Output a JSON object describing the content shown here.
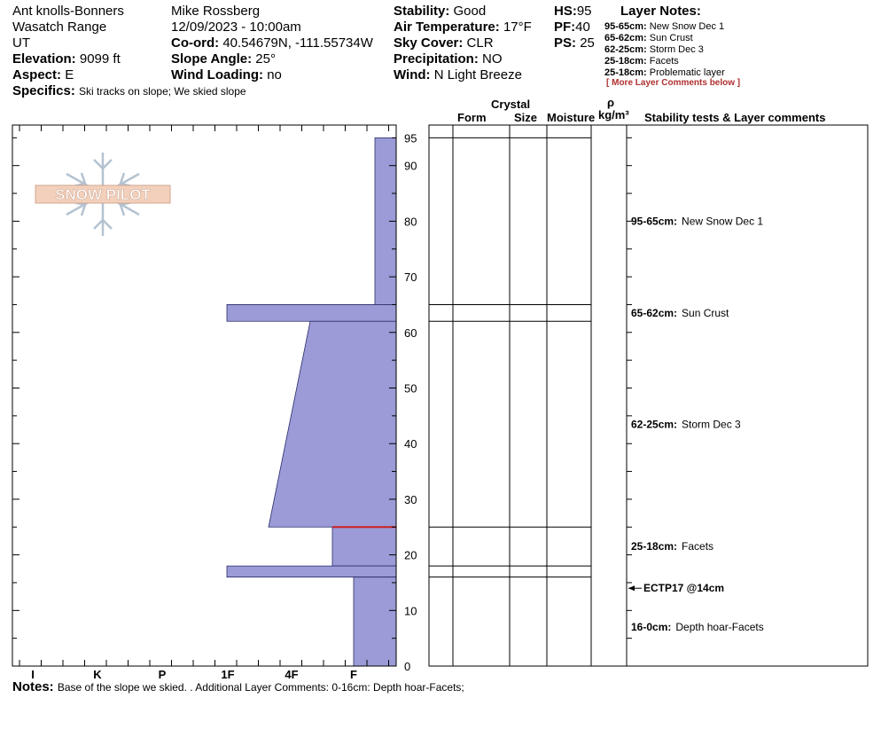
{
  "header": {
    "location": "Ant knolls-Bonners",
    "range": "Wasatch Range",
    "state": "UT",
    "elevation_label": "Elevation:",
    "elevation_value": "9099 ft",
    "aspect_label": "Aspect:",
    "aspect_value": "E",
    "specifics_label": "Specifics:",
    "specifics_value": "Ski tracks on slope; We skied slope",
    "observer": "Mike Rossberg",
    "datetime": "12/09/2023 - 10:00am",
    "coord_label": "Co-ord:",
    "coord_value": "40.54679N, -111.55734W",
    "slope_label": "Slope Angle:",
    "slope_value": "25°",
    "wind_loading_label": "Wind Loading:",
    "wind_loading_value": "no",
    "stability_label": "Stability:",
    "stability_value": "Good",
    "air_temp_label": "Air Temperature:",
    "air_temp_value": "17°F",
    "sky_label": "Sky Cover:",
    "sky_value": "CLR",
    "precip_label": "Precipitation:",
    "precip_value": "NO",
    "wind_label": "Wind:",
    "wind_value": "N Light Breeze",
    "hs_label": "HS:",
    "hs_value": "95",
    "pf_label": "PF:",
    "pf_value": "40",
    "ps_label": "PS:",
    "ps_value": "25"
  },
  "layer_notes": {
    "title": "Layer Notes:",
    "items": [
      {
        "range": "95-65cm:",
        "text": "New Snow Dec 1"
      },
      {
        "range": "65-62cm:",
        "text": "Sun Crust"
      },
      {
        "range": "62-25cm:",
        "text": "Storm Dec 3"
      },
      {
        "range": "25-18cm:",
        "text": "Facets"
      },
      {
        "range": "25-18cm:",
        "text": "Problematic layer"
      }
    ],
    "more": "[ More Layer Comments below ]"
  },
  "logo_text": "SNOW PILOT",
  "columns": {
    "crystal": "Crystal",
    "form": "Form",
    "size": "Size",
    "moisture": "Moisture",
    "rho": "ρ",
    "density_unit": "kg/m³",
    "stability": "Stability tests & Layer comments"
  },
  "notes_label": "Notes:",
  "notes_value": "Base of the slope we skied. . Additional Layer Comments: 0-16cm: Depth hoar-Facets;",
  "colors": {
    "fill": "#9b9bd7",
    "edge": "#2a2a6a",
    "weak_layer": "#cc2020",
    "logo": "#f0c8b0"
  },
  "chart_data": {
    "type": "area",
    "y_unit": "cm",
    "ylim": [
      0,
      97
    ],
    "y_ticks": [
      0,
      10,
      20,
      30,
      40,
      50,
      60,
      70,
      80,
      90,
      95
    ],
    "hardness_scale": [
      "I",
      "K",
      "P",
      "1F",
      "4F",
      "F"
    ],
    "layers": [
      {
        "top": 95,
        "bottom": 65,
        "hardness_top": "F-",
        "hardness_bottom": "F-"
      },
      {
        "top": 65,
        "bottom": 62,
        "hardness_top": "1F",
        "hardness_bottom": "1F"
      },
      {
        "top": 62,
        "bottom": 25,
        "hardness_top": "4F-",
        "hardness_bottom": "4F+"
      },
      {
        "top": 25,
        "bottom": 18,
        "hardness_top": "F+",
        "hardness_bottom": "F+"
      },
      {
        "top": 18,
        "bottom": 16,
        "hardness_top": "1F",
        "hardness_bottom": "1F"
      },
      {
        "top": 16,
        "bottom": 0,
        "hardness_top": "F",
        "hardness_bottom": "F"
      }
    ],
    "weak_layer_cm": 25,
    "layer_comments": [
      {
        "range": "95-65cm:",
        "text": "New Snow Dec 1",
        "y": 80
      },
      {
        "range": "65-62cm:",
        "text": "Sun Crust",
        "y": 63.5
      },
      {
        "range": "62-25cm:",
        "text": "Storm Dec 3",
        "y": 43.5
      },
      {
        "range": "25-18cm:",
        "text": "Facets",
        "y": 21.5
      },
      {
        "range": "16-0cm:",
        "text": "Depth hoar-Facets",
        "y": 7
      }
    ],
    "stability_tests": [
      {
        "label": "ECTP17 @14cm",
        "y": 14
      }
    ]
  }
}
